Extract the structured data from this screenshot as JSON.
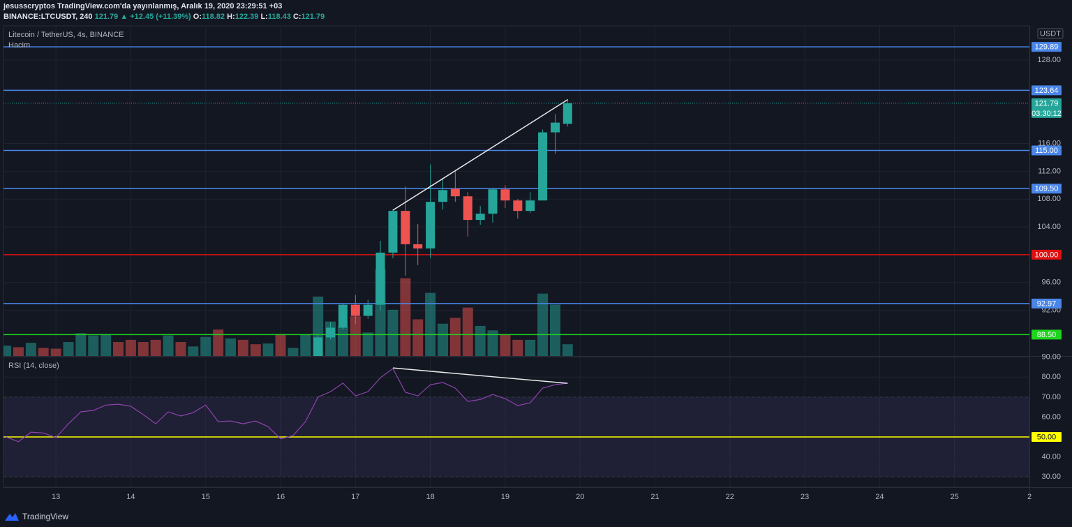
{
  "header": {
    "line1": "jesusscryptos TradingView.com'da yayınlanmış, Aralık 19, 2020 23:29:51 +03",
    "symbol": "BINANCE:LTCUSDT, 240",
    "price": "121.79",
    "change": "▲ +12.45 (+11.39%)",
    "ohlc": [
      {
        "label": "O:",
        "value": "118.82"
      },
      {
        "label": "H:",
        "value": "122.39"
      },
      {
        "label": "L:",
        "value": "118.43"
      },
      {
        "label": "C:",
        "value": "121.79"
      }
    ]
  },
  "footer": {
    "brand": "TradingView"
  },
  "chart_data": [
    {
      "type": "candlestick",
      "title": "Litecoin / TetherUS, 4s, BINANCE",
      "currency": "USDT",
      "x": [
        16.5,
        16.667,
        16.833,
        17,
        17.167,
        17.333,
        17.5,
        17.667,
        17.833,
        18,
        18.167,
        18.333,
        18.5,
        18.667,
        18.833,
        19,
        19.167,
        19.333,
        19.5,
        19.667,
        19.833
      ],
      "open": [
        84.5,
        88.1,
        89.5,
        92.8,
        91.2,
        92.8,
        100.3,
        106.3,
        101.5,
        100.9,
        107.6,
        109.5,
        108.4,
        105.0,
        105.9,
        109.4,
        107.8,
        106.3,
        107.8,
        117.6,
        118.82
      ],
      "high": [
        88.4,
        90.3,
        93.0,
        94.2,
        93.5,
        102.0,
        106.5,
        109.8,
        104.4,
        113.0,
        111.0,
        112.0,
        109.0,
        107.0,
        109.6,
        110.0,
        108.0,
        109.0,
        118.0,
        120.2,
        122.39
      ],
      "low": [
        84.0,
        87.8,
        89.2,
        90.0,
        90.8,
        92.0,
        99.5,
        97.0,
        98.5,
        99.5,
        106.5,
        107.6,
        102.6,
        104.3,
        104.6,
        106.7,
        105.2,
        106.0,
        107.8,
        114.5,
        118.43
      ],
      "close": [
        88.1,
        89.5,
        92.8,
        91.2,
        92.8,
        100.3,
        106.3,
        101.5,
        100.9,
        107.6,
        109.3,
        108.4,
        105.0,
        105.9,
        109.4,
        107.8,
        106.3,
        107.8,
        117.6,
        119.0,
        121.79
      ],
      "up_color": "#26a69a",
      "down_color": "#ef5350",
      "xlim": [
        12.3,
        26.0
      ],
      "ylim": [
        85.43,
        132.92
      ],
      "yticks": [
        {
          "value": 92,
          "label": "92.00"
        },
        {
          "value": 96,
          "label": "96.00"
        },
        {
          "value": 104,
          "label": "104.00"
        },
        {
          "value": 108,
          "label": "108.00"
        },
        {
          "value": 112,
          "label": "112.00"
        },
        {
          "value": 116,
          "label": "116.00"
        },
        {
          "value": 128,
          "label": "128.00"
        }
      ],
      "grid": true,
      "hlines": [
        {
          "value": 129.89,
          "label": "129.89",
          "color": "#4a86e8"
        },
        {
          "value": 123.64,
          "label": "123.64",
          "color": "#4a86e8"
        },
        {
          "value": 115.0,
          "label": "115.00",
          "color": "#4a86e8"
        },
        {
          "value": 109.5,
          "label": "109.50",
          "color": "#4a86e8"
        },
        {
          "value": 100.0,
          "label": "100.00",
          "color": "#e01010"
        },
        {
          "value": 92.97,
          "label": "92.97",
          "color": "#4a86e8"
        },
        {
          "value": 88.5,
          "label": "88.50",
          "color": "#1ed41e"
        }
      ],
      "last_price": {
        "value": 121.79,
        "label": "121.79",
        "countdown": "03:30:12"
      },
      "trendline": {
        "x": [
          17.5,
          19.833
        ],
        "y": [
          106.4,
          122.3
        ],
        "color": "#e8e8e8"
      },
      "volume": {
        "name": "Hacim",
        "x": [
          12.333,
          12.5,
          12.667,
          12.833,
          13,
          13.167,
          13.333,
          13.5,
          13.667,
          13.833,
          14,
          14.167,
          14.333,
          14.5,
          14.667,
          14.833,
          15,
          15.167,
          15.333,
          15.5,
          15.667,
          15.833,
          16,
          16.167,
          16.333,
          16.5,
          16.667,
          16.833,
          17,
          17.167,
          17.333,
          17.5,
          17.667,
          17.833,
          18,
          18.167,
          18.333,
          18.5,
          18.667,
          18.833,
          19,
          19.167,
          19.333,
          19.5,
          19.667,
          19.833
        ],
        "values": [
          14,
          12,
          18,
          11,
          10,
          19,
          31,
          28,
          30,
          19,
          22,
          19,
          22,
          28,
          19,
          13,
          26,
          36,
          24,
          22,
          16,
          17,
          30,
          11,
          29,
          81,
          47,
          40,
          54,
          32,
          118,
          63,
          106,
          50,
          86,
          44,
          52,
          66,
          41,
          35,
          29,
          22,
          22,
          85,
          70,
          16
        ],
        "up": [
          true,
          false,
          true,
          false,
          false,
          true,
          true,
          true,
          true,
          false,
          false,
          false,
          false,
          true,
          false,
          true,
          true,
          false,
          true,
          false,
          false,
          true,
          false,
          true,
          true,
          true,
          true,
          true,
          false,
          true,
          true,
          true,
          false,
          false,
          true,
          true,
          false,
          false,
          true,
          true,
          false,
          false,
          true,
          true,
          true,
          true
        ],
        "ylim": [
          0,
          450
        ]
      }
    },
    {
      "type": "line",
      "title": "RSI (14, close)",
      "x": [
        12.333,
        12.5,
        12.667,
        12.833,
        13,
        13.167,
        13.333,
        13.5,
        13.667,
        13.833,
        14,
        14.167,
        14.333,
        14.5,
        14.667,
        14.833,
        15,
        15.167,
        15.333,
        15.5,
        15.667,
        15.833,
        16,
        16.167,
        16.333,
        16.5,
        16.667,
        16.833,
        17,
        17.167,
        17.333,
        17.5,
        17.667,
        17.833,
        18,
        18.167,
        18.333,
        18.5,
        18.667,
        18.833,
        19,
        19.167,
        19.333,
        19.5,
        19.667,
        19.833
      ],
      "values": [
        50,
        47.6,
        52.4,
        52,
        49.7,
        56.6,
        62.6,
        63.3,
        66,
        66.4,
        65.4,
        61.2,
        56.6,
        62.6,
        60.5,
        62.2,
        66,
        57.7,
        58,
        56.6,
        58,
        55.2,
        49,
        50.7,
        57.7,
        70,
        72.7,
        77,
        70.6,
        72.7,
        79.7,
        84.3,
        72.4,
        70.6,
        76.2,
        77.3,
        74.5,
        67.8,
        68.8,
        71.3,
        69.2,
        65.7,
        67.1,
        74.5,
        76.2,
        77
      ],
      "color": "#8e44ad",
      "xlim": [
        12.3,
        26.0
      ],
      "xticks": [
        13,
        14,
        15,
        16,
        17,
        18,
        19,
        20,
        21,
        22,
        23,
        24,
        25,
        {
          "value": 26,
          "label": "2"
        }
      ],
      "ylim": [
        24.8,
        90.6
      ],
      "yticks": [
        {
          "value": 90,
          "label": "90.00"
        },
        {
          "value": 80,
          "label": "80.00"
        },
        {
          "value": 70,
          "label": "70.00"
        },
        {
          "value": 60,
          "label": "60.00"
        },
        {
          "value": 40,
          "label": "40.00"
        },
        {
          "value": 30,
          "label": "30.00"
        }
      ],
      "grid": true,
      "bands": [
        30,
        70
      ],
      "band_color": "#7e57c2",
      "midline": {
        "value": 50,
        "label": "50.00",
        "color": "#ffff00"
      },
      "trendline": {
        "x": [
          17.5,
          19.833
        ],
        "y": [
          84.6,
          76.9
        ],
        "color": "#e8e8e8"
      }
    }
  ]
}
